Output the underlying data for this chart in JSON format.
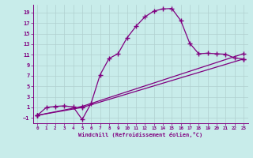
{
  "xlabel": "Windchill (Refroidissement éolien,°C)",
  "background_color": "#c8ecea",
  "line_color": "#800080",
  "grid_color": "#b0d0cf",
  "xlim": [
    -0.5,
    23.5
  ],
  "ylim": [
    -2.0,
    20.5
  ],
  "xticks": [
    0,
    1,
    2,
    3,
    4,
    5,
    6,
    7,
    8,
    9,
    10,
    11,
    12,
    13,
    14,
    15,
    16,
    17,
    18,
    19,
    20,
    21,
    22,
    23
  ],
  "yticks": [
    -1,
    1,
    3,
    5,
    7,
    9,
    11,
    13,
    15,
    17,
    19
  ],
  "curve1_x": [
    0,
    1,
    2,
    3,
    4,
    5,
    6,
    7,
    8,
    9,
    10,
    11,
    12,
    13,
    14,
    15,
    16,
    17,
    18,
    19,
    20,
    21,
    22,
    23
  ],
  "curve1_y": [
    -0.5,
    1.0,
    1.2,
    1.3,
    1.1,
    -1.3,
    1.8,
    7.2,
    10.3,
    11.2,
    14.2,
    16.4,
    18.2,
    19.3,
    19.7,
    19.8,
    17.5,
    13.2,
    11.2,
    11.3,
    11.2,
    11.1,
    10.4,
    10.2
  ],
  "curve2_x": [
    0,
    5,
    23
  ],
  "curve2_y": [
    -0.5,
    1.2,
    11.2
  ],
  "curve3_x": [
    0,
    5,
    23
  ],
  "curve3_y": [
    -0.5,
    1.0,
    10.2
  ],
  "marker": "+",
  "markersize": 4,
  "linewidth": 0.9
}
